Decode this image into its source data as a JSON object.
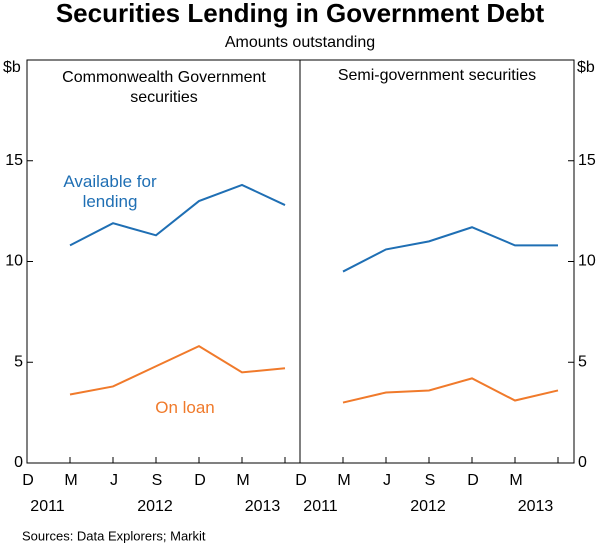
{
  "title": "Securities Lending in Government Debt",
  "subtitle": "Amounts outstanding",
  "source": "Sources:   Data Explorers; Markit",
  "chart_data": [
    {
      "type": "line",
      "title": "Commonwealth Government securities",
      "y_unit": "$b",
      "axis_side": "left",
      "categories": [
        "D",
        "M",
        "J",
        "S",
        "D",
        "M"
      ],
      "years": [
        "2011",
        "2012",
        null,
        null,
        null,
        "2013"
      ],
      "ylim": [
        0,
        20
      ],
      "yticks": [
        0,
        5,
        10,
        15
      ],
      "series": [
        {
          "name": "Available for lending",
          "color": "#1f6fb4",
          "values": [
            10.8,
            11.9,
            11.3,
            13.0,
            13.8,
            12.8
          ]
        },
        {
          "name": "On loan",
          "color": "#f07a2b",
          "values": [
            3.4,
            3.8,
            4.8,
            5.8,
            4.5,
            4.7
          ]
        }
      ]
    },
    {
      "type": "line",
      "title": "Semi-government securities",
      "y_unit": "$b",
      "axis_side": "right",
      "categories": [
        "D",
        "M",
        "J",
        "S",
        "D",
        "M"
      ],
      "years": [
        "2011",
        "2012",
        null,
        null,
        null,
        "2013"
      ],
      "ylim": [
        0,
        20
      ],
      "yticks": [
        0,
        5,
        10,
        15
      ],
      "series": [
        {
          "name": "Available for lending",
          "color": "#1f6fb4",
          "values": [
            9.5,
            10.6,
            11.0,
            11.7,
            10.8,
            10.8
          ]
        },
        {
          "name": "On loan",
          "color": "#f07a2b",
          "values": [
            3.0,
            3.5,
            3.6,
            4.2,
            3.1,
            3.6
          ]
        }
      ]
    }
  ]
}
